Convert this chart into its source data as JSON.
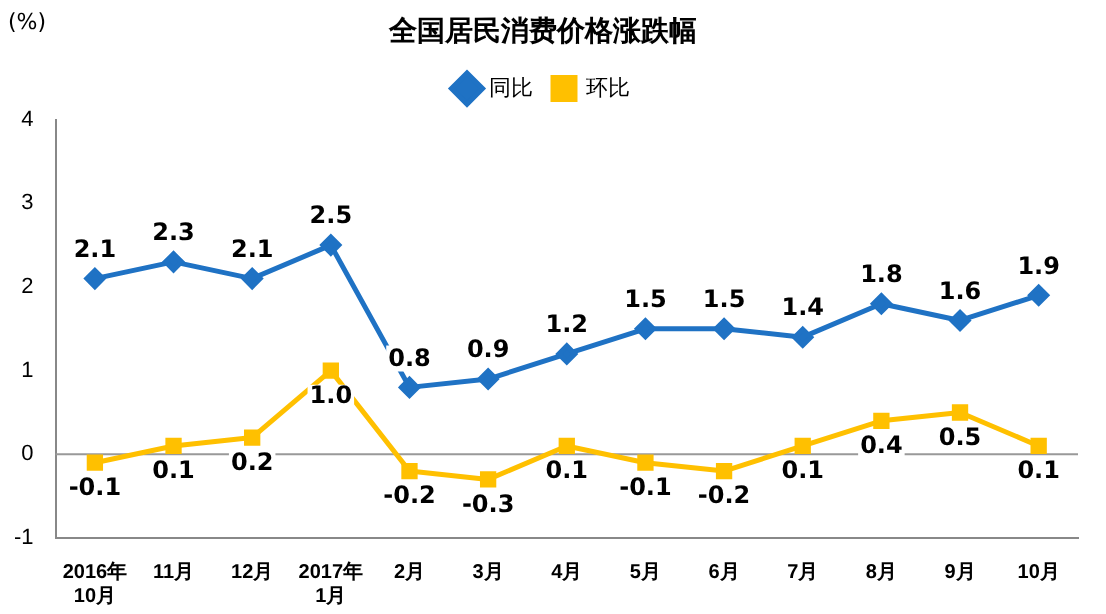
{
  "chart_data": {
    "type": "line",
    "title": "全国居民消费价格涨跌幅",
    "ylabel": "(%)",
    "categories": [
      "2016年\n10月",
      "11月",
      "12月",
      "2017年\n1月",
      "2月",
      "3月",
      "4月",
      "5月",
      "6月",
      "7月",
      "8月",
      "9月",
      "10月"
    ],
    "series": [
      {
        "name": "同比",
        "color": "#1f72c4",
        "marker": "diamond",
        "values": [
          2.1,
          2.3,
          2.1,
          2.5,
          0.8,
          0.9,
          1.2,
          1.5,
          1.5,
          1.4,
          1.8,
          1.6,
          1.9
        ],
        "value_labels": [
          "2.1",
          "2.3",
          "2.1",
          "2.5",
          "0.8",
          "0.9",
          "1.2",
          "1.5",
          "1.5",
          "1.4",
          "1.8",
          "1.6",
          "1.9"
        ]
      },
      {
        "name": "环比",
        "color": "#ffc000",
        "marker": "square",
        "values": [
          -0.1,
          0.1,
          0.2,
          1.0,
          -0.2,
          -0.3,
          0.1,
          -0.1,
          -0.2,
          0.1,
          0.4,
          0.5,
          0.1
        ],
        "value_labels": [
          "-0.1",
          "0.1",
          "0.2",
          "1.0",
          "-0.2",
          "-0.3",
          "0.1",
          "-0.1",
          "-0.2",
          "0.1",
          "0.4",
          "0.5",
          "0.1"
        ]
      }
    ],
    "ylim": [
      -1,
      4
    ],
    "yticks": [
      -1,
      0,
      1,
      2,
      3,
      4
    ],
    "grid": false,
    "legend": "top",
    "ref_lines": [
      {
        "axis": "y",
        "value": 0,
        "color": "#999999"
      }
    ]
  }
}
